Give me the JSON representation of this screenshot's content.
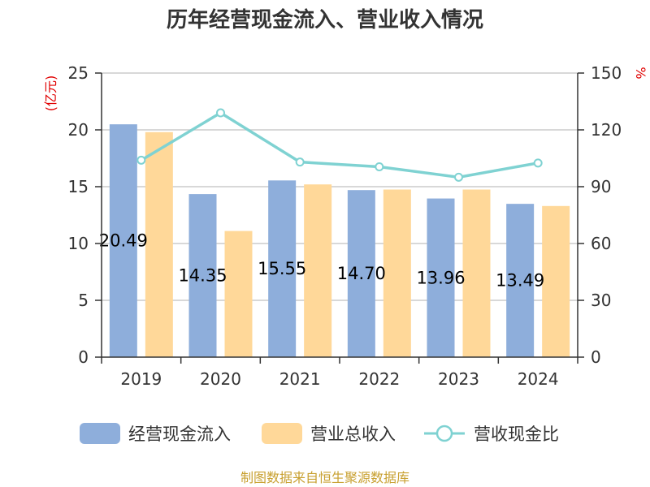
{
  "chart_data": {
    "type": "bar",
    "title": "历年经营现金流入、营业收入情况",
    "left_axis": {
      "unit": "(亿元)",
      "min": 0,
      "max": 25,
      "ticks": [
        0,
        5,
        10,
        15,
        20,
        25
      ]
    },
    "right_axis": {
      "unit": "%",
      "min": 0,
      "max": 150,
      "ticks": [
        0,
        30,
        60,
        90,
        120,
        150
      ]
    },
    "categories": [
      "2019",
      "2020",
      "2021",
      "2022",
      "2023",
      "2024"
    ],
    "series": [
      {
        "name": "经营现金流入",
        "kind": "bar",
        "axis": "left",
        "color": "#8eaedb",
        "values": [
          20.49,
          14.35,
          15.55,
          14.7,
          13.96,
          13.49
        ],
        "labels": [
          "20.49",
          "14.35",
          "15.55",
          "14.70",
          "13.96",
          "13.49"
        ]
      },
      {
        "name": "营业总收入",
        "kind": "bar",
        "axis": "left",
        "color": "#ffd899",
        "values": [
          19.8,
          11.1,
          15.2,
          14.75,
          14.75,
          13.3
        ]
      },
      {
        "name": "营收现金比",
        "kind": "line",
        "axis": "right",
        "color": "#7fd2d2",
        "values": [
          104,
          129,
          103,
          100.5,
          95,
          102.5
        ]
      }
    ],
    "grid": true,
    "legend_position": "bottom"
  },
  "source_note": "制图数据来自恒生聚源数据库"
}
